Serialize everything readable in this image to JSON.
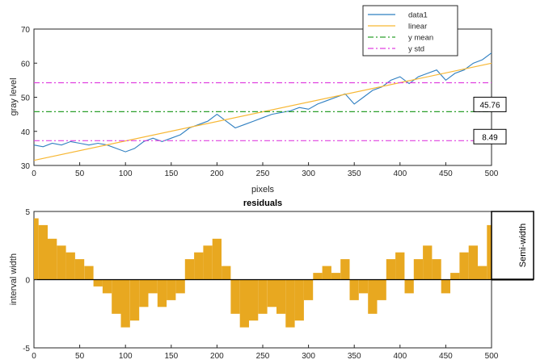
{
  "chart_data": [
    {
      "type": "line",
      "title": "",
      "xlabel": "pixels",
      "ylabel": "gray level",
      "xlim": [
        0,
        500
      ],
      "ylim": [
        30,
        70
      ],
      "xticks": [
        "0",
        "50",
        "100",
        "150",
        "200",
        "250",
        "300",
        "350",
        "400",
        "450",
        "500"
      ],
      "yticks": [
        "30",
        "40",
        "50",
        "60",
        "70"
      ],
      "grid": false,
      "legend": {
        "placement": "top-right",
        "entries": [
          {
            "label": "data1",
            "color": "#2f7fc1",
            "style": "solid"
          },
          {
            "label": "linear",
            "color": "#f7b733",
            "style": "solid"
          },
          {
            "label": "y mean",
            "color": "#2ca02c",
            "style": "dashdot"
          },
          {
            "label": "y std",
            "color": "#e040e0",
            "style": "dashdot"
          }
        ]
      },
      "series": [
        {
          "name": "data1",
          "color": "#2f7fc1",
          "x": [
            0,
            10,
            20,
            30,
            40,
            50,
            60,
            70,
            80,
            90,
            100,
            110,
            120,
            130,
            140,
            150,
            160,
            170,
            180,
            190,
            200,
            210,
            220,
            230,
            240,
            250,
            260,
            270,
            280,
            290,
            300,
            310,
            320,
            330,
            340,
            350,
            360,
            370,
            380,
            390,
            400,
            410,
            420,
            430,
            440,
            450,
            460,
            470,
            480,
            490,
            500
          ],
          "y": [
            36,
            35.5,
            36.5,
            36,
            37,
            36.5,
            36,
            36.5,
            36,
            35,
            34,
            35,
            37,
            38,
            37,
            38,
            39,
            41,
            42,
            43,
            45,
            43,
            41,
            42,
            43,
            44,
            45,
            45.5,
            46,
            47,
            46.5,
            48,
            49,
            50,
            51,
            48,
            50,
            52,
            53,
            55,
            56,
            54,
            56,
            57,
            58,
            55,
            57,
            58,
            60,
            61,
            63
          ]
        },
        {
          "name": "linear",
          "color": "#f7b733",
          "x": [
            0,
            500
          ],
          "y": [
            31.5,
            60
          ]
        },
        {
          "name": "y mean",
          "color": "#2ca02c",
          "x": [
            0,
            500
          ],
          "y": [
            45.76,
            45.76
          ]
        },
        {
          "name": "y std",
          "color": "#e040e0",
          "x": [
            0,
            500
          ],
          "y": [
            37.27,
            37.27
          ]
        },
        {
          "name": "y std",
          "color": "#e040e0",
          "x": [
            0,
            500
          ],
          "y": [
            54.25,
            54.25
          ]
        }
      ],
      "annotations": [
        {
          "text": "45.76",
          "x": 500,
          "y": 45.76
        },
        {
          "text": "8.49",
          "x": 500,
          "y": 37.27
        }
      ]
    },
    {
      "type": "bar",
      "title": "residuals",
      "xlabel": "",
      "ylabel": "interval width",
      "xlim": [
        0,
        500
      ],
      "ylim": [
        -5,
        5
      ],
      "xticks": [
        "0",
        "50",
        "100",
        "150",
        "200",
        "250",
        "300",
        "350",
        "400",
        "450",
        "500"
      ],
      "yticks": [
        "-5",
        "0",
        "5"
      ],
      "grid": false,
      "color": "#e8a820",
      "side_label": "Semi-width",
      "x": [
        0,
        10,
        20,
        30,
        40,
        50,
        60,
        70,
        80,
        90,
        100,
        110,
        120,
        130,
        140,
        150,
        160,
        170,
        180,
        190,
        200,
        210,
        220,
        230,
        240,
        250,
        260,
        270,
        280,
        290,
        300,
        310,
        320,
        330,
        340,
        350,
        360,
        370,
        380,
        390,
        400,
        410,
        420,
        430,
        440,
        450,
        460,
        470,
        480,
        490,
        500
      ],
      "values": [
        4.5,
        4,
        3,
        2.5,
        2,
        1.5,
        1,
        -0.5,
        -1,
        -2.5,
        -3.5,
        -3,
        -2,
        -1,
        -2,
        -1.5,
        -1,
        1.5,
        2,
        2.5,
        3,
        1,
        -2.5,
        -3.5,
        -3,
        -2.5,
        -2,
        -2.5,
        -3.5,
        -3,
        -1.5,
        0.5,
        1,
        0.5,
        1.5,
        -1.5,
        -1,
        -2.5,
        -1.5,
        1.5,
        2,
        -1,
        1.5,
        2.5,
        1.5,
        -1,
        0.5,
        2,
        2.5,
        1,
        4
      ]
    }
  ]
}
